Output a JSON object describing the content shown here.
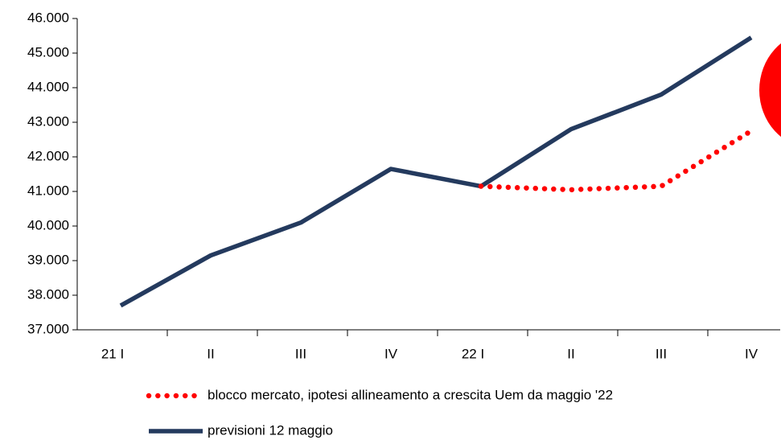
{
  "chart_data": {
    "type": "line",
    "categories": [
      "21 I",
      "II",
      "III",
      "IV",
      "22 I",
      "II",
      "III",
      "IV"
    ],
    "series": [
      {
        "name": "blocco mercato, ipotesi allineamento a crescita Uem da maggio '22",
        "color": "#ff0000",
        "style": "dotted",
        "values": [
          null,
          null,
          null,
          null,
          41150,
          41050,
          41150,
          42750
        ]
      },
      {
        "name": "previsioni 12 maggio",
        "color": "#243a5e",
        "style": "solid",
        "values": [
          37700,
          39150,
          40100,
          41650,
          41150,
          42800,
          43800,
          45450
        ]
      }
    ],
    "ylim": [
      37000,
      46000
    ],
    "yticks": [
      {
        "value": 37000,
        "label": "37.000"
      },
      {
        "value": 38000,
        "label": "38.000"
      },
      {
        "value": 39000,
        "label": "39.000"
      },
      {
        "value": 40000,
        "label": "40.000"
      },
      {
        "value": 41000,
        "label": "41.000"
      },
      {
        "value": 42000,
        "label": "42.000"
      },
      {
        "value": 43000,
        "label": "43.000"
      },
      {
        "value": 44000,
        "label": "44.000"
      },
      {
        "value": 45000,
        "label": "45.000"
      },
      {
        "value": 46000,
        "label": "46.000"
      }
    ],
    "grid": false,
    "legend": "bottom"
  }
}
